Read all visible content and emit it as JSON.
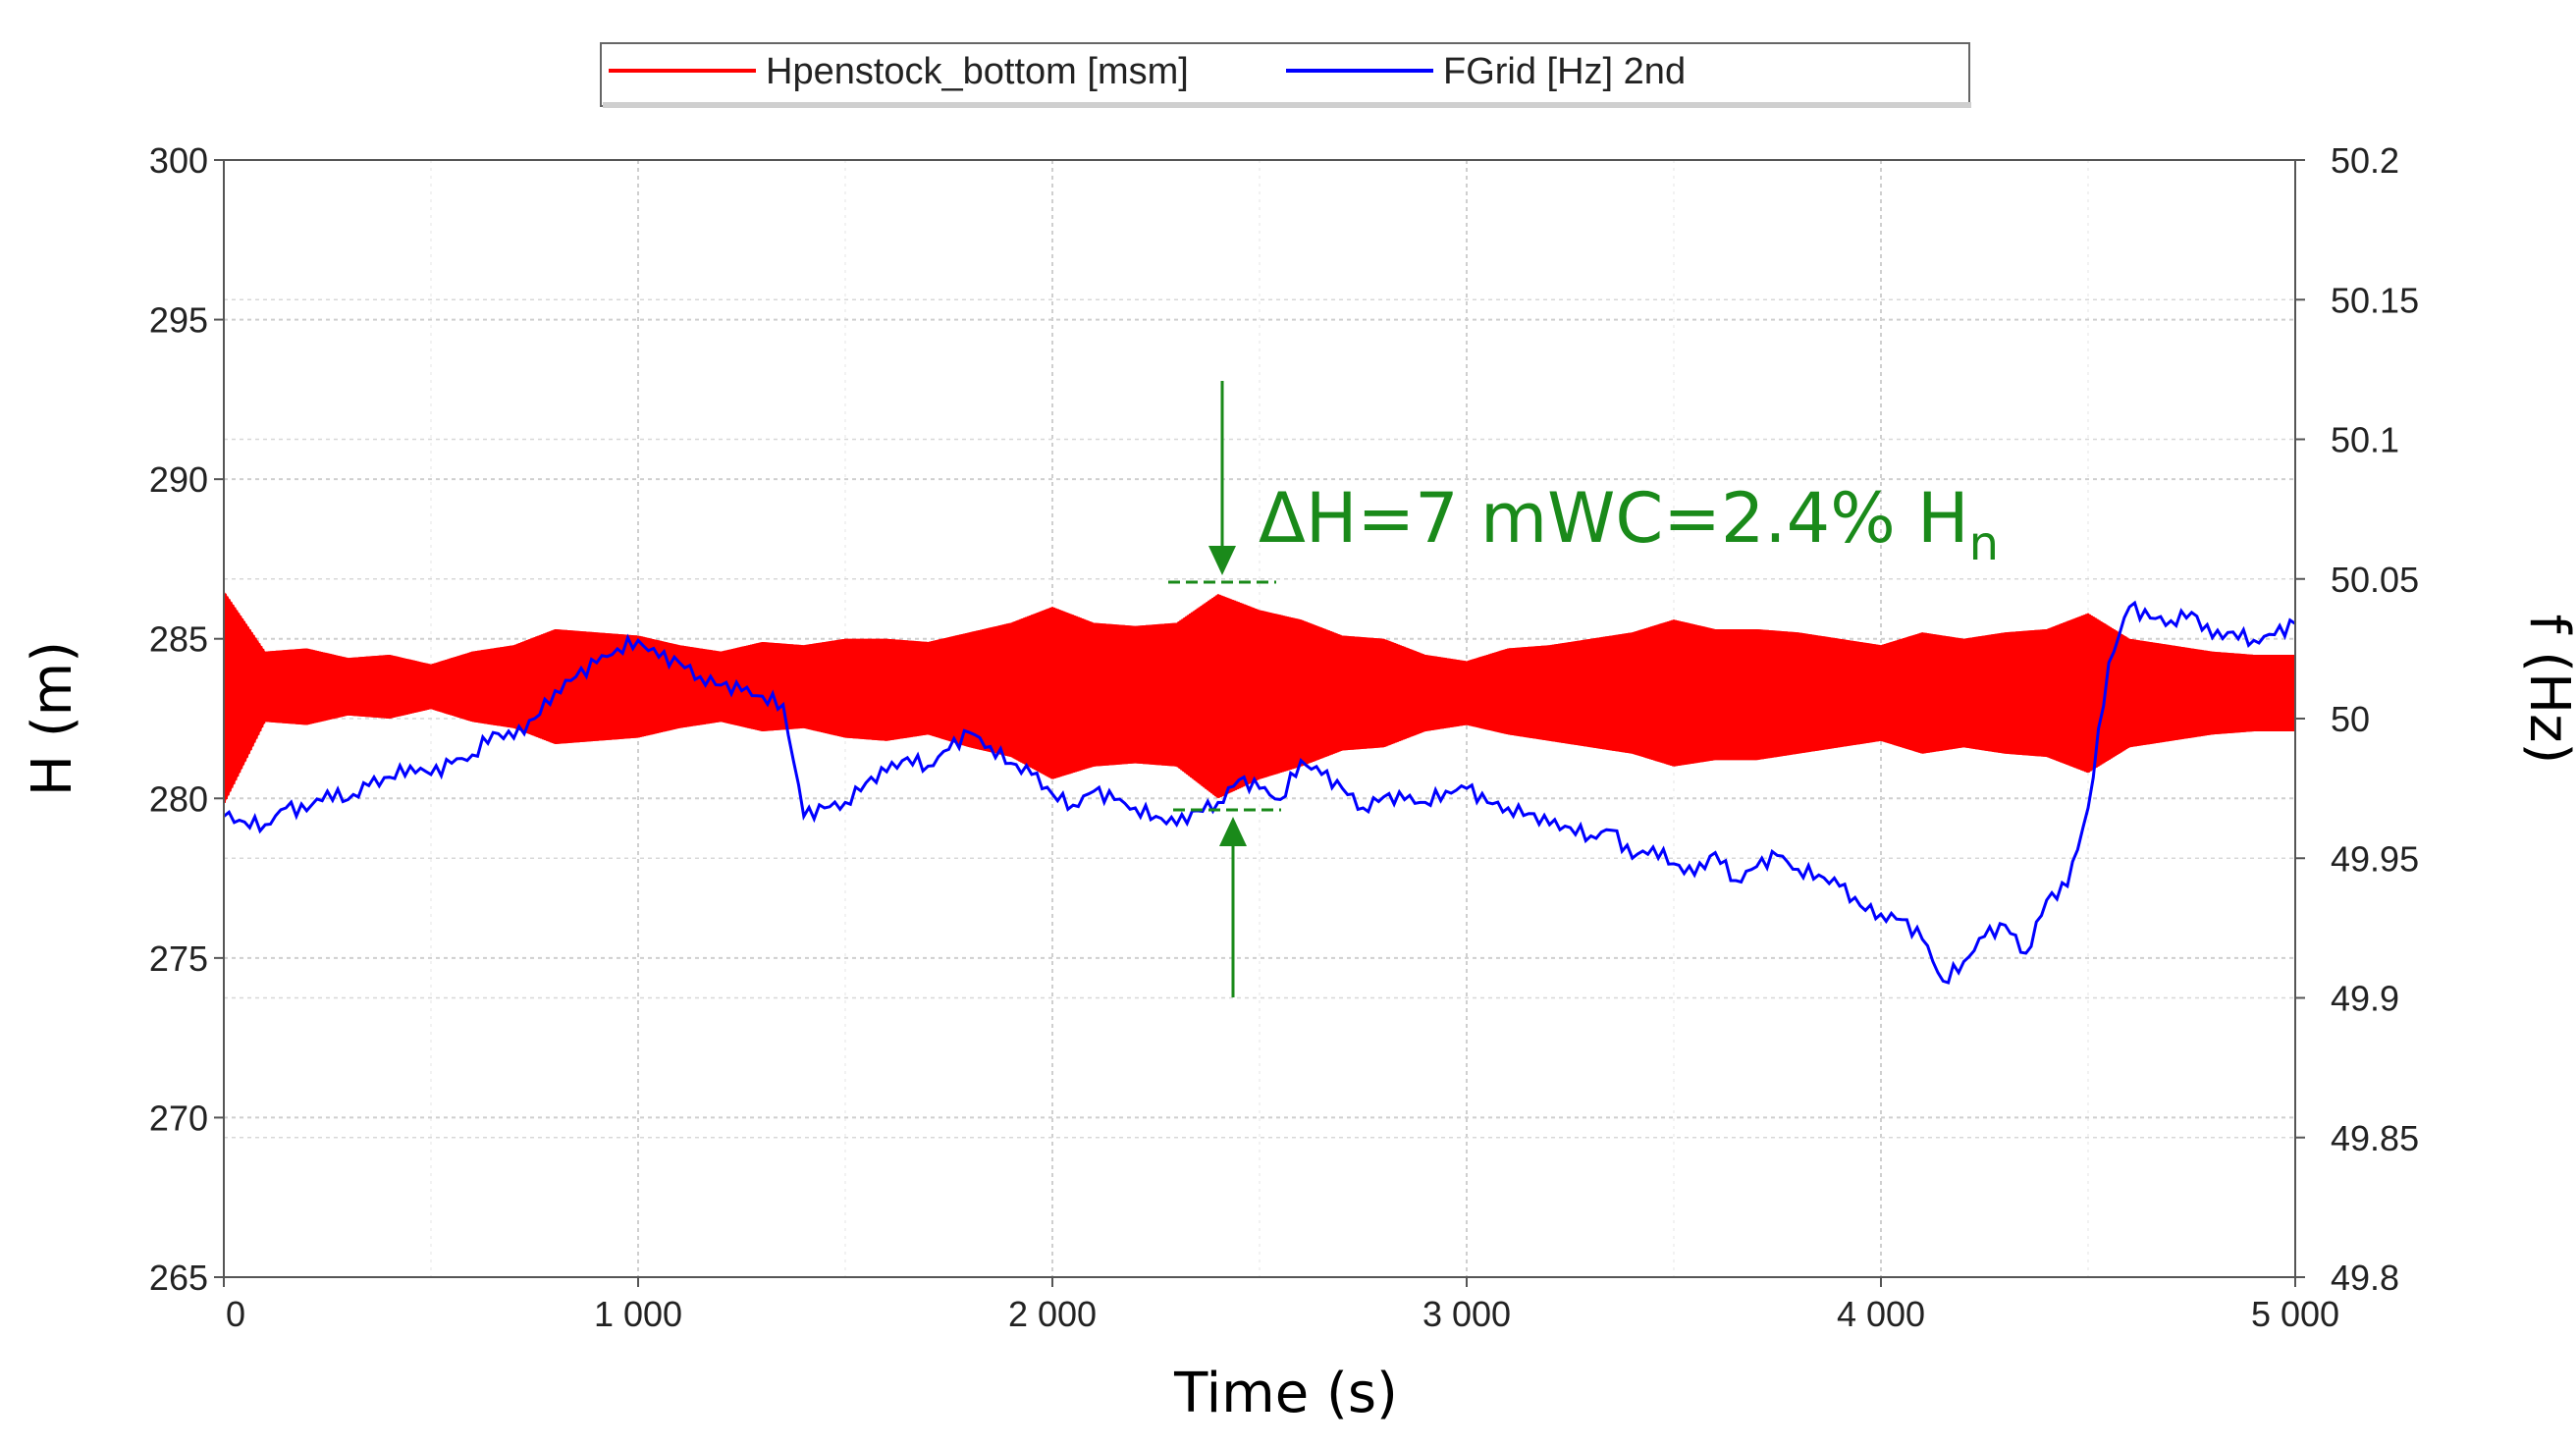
{
  "chart_data": {
    "type": "line",
    "title": "",
    "xlabel": "Time (s)",
    "ylabel": "H (m)",
    "y2label": "f (Hz)",
    "xlim": [
      0,
      5000
    ],
    "ylim": [
      265,
      300
    ],
    "y2lim": [
      49.8,
      50.2
    ],
    "x_ticks": [
      0,
      1000,
      2000,
      3000,
      4000,
      5000
    ],
    "x_tick_labels": [
      "0",
      "1 000",
      "2 000",
      "3 000",
      "4 000",
      "5 000"
    ],
    "y_ticks": [
      265,
      270,
      275,
      280,
      285,
      290,
      295,
      300
    ],
    "y_tick_labels": [
      "265",
      "270",
      "275",
      "280",
      "285",
      "290",
      "295",
      "300"
    ],
    "y2_ticks": [
      49.8,
      49.85,
      49.9,
      49.95,
      50,
      50.05,
      50.1,
      50.15,
      50.2
    ],
    "y2_tick_labels": [
      "49.8",
      "49.85",
      "49.9",
      "49.95",
      "50",
      "50.05",
      "50.1",
      "50.15",
      "50.2"
    ],
    "grid": true,
    "legend_position": "top-center",
    "series": [
      {
        "name": "Hpenstock_bottom [msm]",
        "axis": "left",
        "color": "#ff0000",
        "style": "oscillating band",
        "x": [
          0,
          100,
          200,
          300,
          400,
          500,
          600,
          700,
          800,
          900,
          1000,
          1100,
          1200,
          1300,
          1400,
          1500,
          1600,
          1700,
          1800,
          1900,
          2000,
          2100,
          2200,
          2300,
          2400,
          2500,
          2600,
          2700,
          2800,
          2900,
          3000,
          3100,
          3200,
          3300,
          3400,
          3500,
          3600,
          3700,
          3800,
          3900,
          4000,
          4100,
          4200,
          4300,
          4400,
          4500,
          4600,
          4700,
          4800,
          4900,
          5000
        ],
        "upper": [
          286.5,
          284.6,
          284.7,
          284.4,
          284.5,
          284.2,
          284.6,
          284.8,
          285.3,
          285.2,
          285.1,
          284.8,
          284.6,
          284.9,
          284.8,
          285.0,
          285.0,
          284.9,
          285.2,
          285.5,
          286.0,
          285.5,
          285.4,
          285.5,
          286.4,
          285.9,
          285.6,
          285.1,
          285.0,
          284.5,
          284.3,
          284.7,
          284.8,
          285.0,
          285.2,
          285.6,
          285.3,
          285.3,
          285.2,
          285.0,
          284.8,
          285.2,
          285.0,
          285.2,
          285.3,
          285.8,
          285.0,
          284.8,
          284.6,
          284.5,
          284.5
        ],
        "lower": [
          279.8,
          282.4,
          282.3,
          282.6,
          282.5,
          282.8,
          282.4,
          282.2,
          281.7,
          281.8,
          281.9,
          282.2,
          282.4,
          282.1,
          282.2,
          281.9,
          281.8,
          282.0,
          281.6,
          281.3,
          280.6,
          281.0,
          281.1,
          281.0,
          280.0,
          280.6,
          281.0,
          281.5,
          281.6,
          282.1,
          282.3,
          282.0,
          281.8,
          281.6,
          281.4,
          281.0,
          281.2,
          281.2,
          281.4,
          281.6,
          281.8,
          281.4,
          281.6,
          281.4,
          281.3,
          280.8,
          281.6,
          281.8,
          282.0,
          282.1,
          282.1
        ]
      },
      {
        "name": "FGrid [Hz] 2nd",
        "axis": "right",
        "color": "#0000ff",
        "x": [
          0,
          50,
          100,
          150,
          200,
          250,
          300,
          350,
          400,
          450,
          500,
          550,
          600,
          650,
          700,
          750,
          800,
          850,
          900,
          950,
          1000,
          1050,
          1100,
          1150,
          1200,
          1250,
          1300,
          1350,
          1400,
          1450,
          1500,
          1550,
          1600,
          1650,
          1700,
          1750,
          1800,
          1850,
          1900,
          1950,
          2000,
          2050,
          2100,
          2150,
          2200,
          2250,
          2300,
          2350,
          2400,
          2450,
          2500,
          2550,
          2600,
          2650,
          2700,
          2750,
          2800,
          2850,
          2900,
          2950,
          3000,
          3050,
          3100,
          3150,
          3200,
          3250,
          3300,
          3350,
          3400,
          3450,
          3500,
          3550,
          3600,
          3650,
          3700,
          3750,
          3800,
          3850,
          3900,
          3950,
          4000,
          4050,
          4100,
          4150,
          4200,
          4250,
          4300,
          4350,
          4400,
          4450,
          4500,
          4550,
          4600,
          4650,
          4700,
          4750,
          4800,
          4850,
          4900,
          4950,
          5000
        ],
        "y": [
          49.965,
          49.963,
          49.962,
          49.968,
          49.967,
          49.974,
          49.971,
          49.976,
          49.979,
          49.983,
          49.98,
          49.984,
          49.987,
          49.995,
          49.993,
          50.0,
          50.01,
          50.015,
          50.02,
          50.025,
          50.028,
          50.022,
          50.02,
          50.015,
          50.012,
          50.01,
          50.008,
          50.005,
          49.965,
          49.968,
          49.97,
          49.977,
          49.981,
          49.986,
          49.983,
          49.989,
          49.995,
          49.99,
          49.984,
          49.98,
          49.973,
          49.969,
          49.974,
          49.971,
          49.968,
          49.965,
          49.962,
          49.967,
          49.97,
          49.978,
          49.975,
          49.971,
          49.985,
          49.98,
          49.975,
          49.968,
          49.972,
          49.971,
          49.97,
          49.974,
          49.975,
          49.97,
          49.968,
          49.966,
          49.962,
          49.961,
          49.958,
          49.96,
          49.95,
          49.954,
          49.948,
          49.944,
          49.952,
          49.942,
          49.947,
          49.951,
          49.946,
          49.944,
          49.94,
          49.933,
          49.93,
          49.928,
          49.921,
          49.906,
          49.913,
          49.922,
          49.926,
          49.916,
          49.935,
          49.94,
          49.968,
          50.02,
          50.04,
          50.036,
          50.035,
          50.038,
          50.029,
          50.031,
          50.028,
          50.03,
          50.034
        ]
      }
    ],
    "annotations": [
      {
        "text": "ΔH=7 mWC=2.4% H",
        "subscript": "n",
        "color": "#1a8a1a"
      }
    ]
  }
}
